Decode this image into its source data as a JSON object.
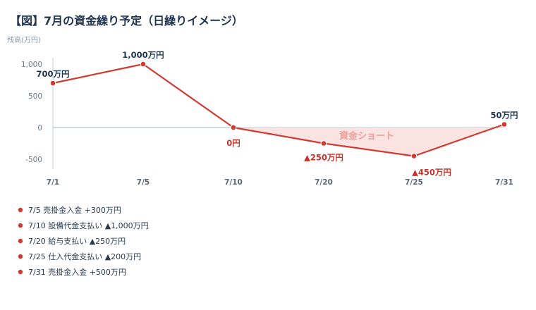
{
  "chart_data": {
    "type": "line",
    "title": "【図】7月の資金繰り予定（日繰りイメージ）",
    "ylabel": "残高(万円)",
    "xlabel": "",
    "categories": [
      "7/1",
      "7/5",
      "7/10",
      "7/20",
      "7/25",
      "7/31"
    ],
    "values": [
      700,
      1000,
      0,
      -250,
      -450,
      50
    ],
    "data_labels": [
      "700万円",
      "1,000万円",
      "0円",
      "▲250万円",
      "▲450万円",
      "50万円"
    ],
    "ylim": [
      -650,
      1150
    ],
    "yticks": [
      1000,
      500,
      0,
      -500
    ],
    "ytick_labels": [
      "1,000",
      "500",
      "0",
      "-500"
    ],
    "shortage_label": "資金ショート",
    "grid": false,
    "colors": {
      "line": "#cf3b33",
      "point": "#cf3b33",
      "fill": "#fbe3e1",
      "zero_line": "#b9c4d0",
      "title": "#1f3550"
    }
  },
  "notes": [
    "7/5  売掛金入金 +300万円",
    "7/10  設備代金支払い ▲1,000万円",
    "7/20  給与支払い ▲250万円",
    "7/25  仕入代金支払い ▲200万円",
    "7/31  売掛金入金 +500万円"
  ]
}
